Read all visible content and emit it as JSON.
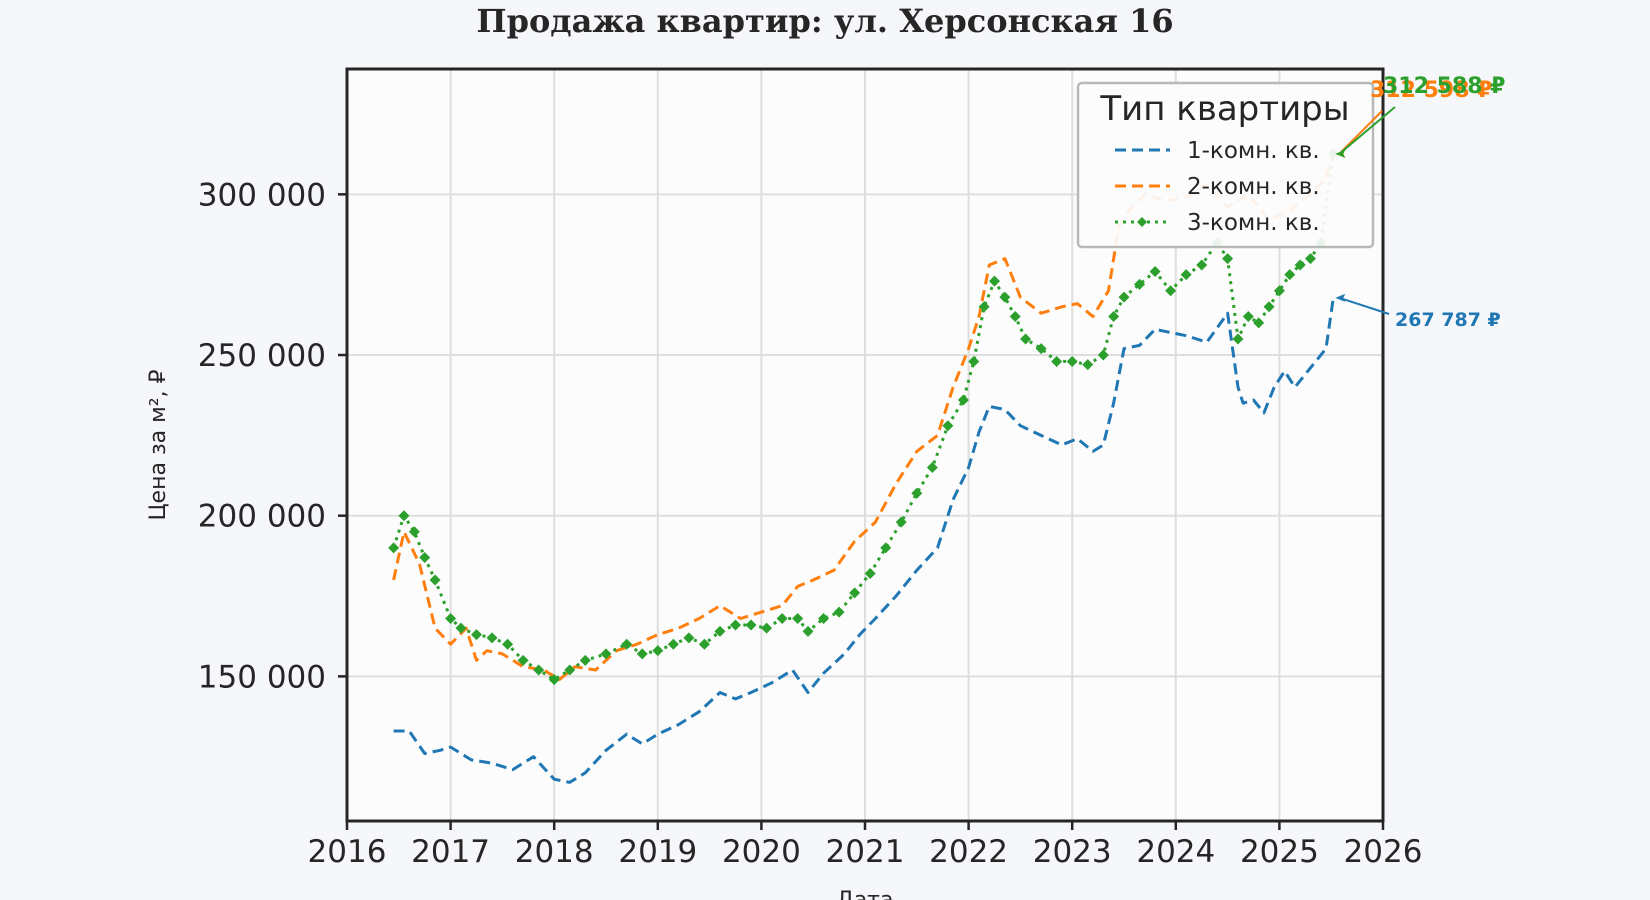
{
  "chart_data": {
    "type": "line",
    "title": "Продажа квартир: ул. Херсонская 16",
    "xlabel": "Дата",
    "ylabel": "Цена за м², ₽",
    "xlim": [
      2016,
      2026
    ],
    "ylim": [
      105000,
      339000
    ],
    "x_ticks": [
      "2016",
      "2017",
      "2018",
      "2019",
      "2020",
      "2021",
      "2022",
      "2023",
      "2024",
      "2025",
      "2026"
    ],
    "y_ticks": [
      "150 000",
      "200 000",
      "250 000",
      "300 000"
    ],
    "y_tick_values": [
      150000,
      200000,
      250000,
      300000
    ],
    "grid": true,
    "legend": {
      "title": "Тип квартиры",
      "placement": "top-right"
    },
    "series": [
      {
        "name": "1-комн. кв.",
        "color": "#1f77b4",
        "style": "dashed",
        "x": [
          2016.45,
          2016.6,
          2016.75,
          2016.9,
          2017.0,
          2017.2,
          2017.4,
          2017.6,
          2017.8,
          2018.0,
          2018.15,
          2018.3,
          2018.5,
          2018.7,
          2018.85,
          2019.0,
          2019.2,
          2019.4,
          2019.6,
          2019.75,
          2019.9,
          2020.1,
          2020.3,
          2020.45,
          2020.6,
          2020.8,
          2020.95,
          2021.1,
          2021.3,
          2021.5,
          2021.7,
          2021.85,
          2022.0,
          2022.1,
          2022.2,
          2022.35,
          2022.5,
          2022.7,
          2022.9,
          2023.05,
          2023.2,
          2023.3,
          2023.4,
          2023.5,
          2023.65,
          2023.8,
          2023.95,
          2024.1,
          2024.3,
          2024.5,
          2024.6,
          2024.65,
          2024.75,
          2024.85,
          2024.95,
          2025.05,
          2025.15,
          2025.25,
          2025.35,
          2025.45,
          2025.52
        ],
        "y": [
          133000,
          133000,
          126000,
          127000,
          128000,
          124000,
          123000,
          121000,
          125000,
          118000,
          117000,
          120000,
          127000,
          132000,
          129000,
          132000,
          135000,
          139000,
          145000,
          143000,
          145000,
          148000,
          152000,
          145000,
          151000,
          157000,
          163000,
          168000,
          175000,
          183000,
          190000,
          205000,
          215000,
          226000,
          234000,
          233000,
          228000,
          225000,
          222000,
          224000,
          220000,
          222000,
          235000,
          252000,
          253000,
          258000,
          257000,
          256000,
          254000,
          263000,
          240000,
          235000,
          236000,
          232000,
          240000,
          245000,
          240000,
          244000,
          248000,
          252000,
          267787
        ]
      },
      {
        "name": "2-комн. кв.",
        "color": "#ff7f0e",
        "style": "dashed",
        "x": [
          2016.45,
          2016.55,
          2016.7,
          2016.85,
          2017.0,
          2017.15,
          2017.25,
          2017.35,
          2017.5,
          2017.7,
          2017.9,
          2018.05,
          2018.2,
          2018.4,
          2018.6,
          2018.8,
          2019.0,
          2019.2,
          2019.4,
          2019.6,
          2019.8,
          2020.0,
          2020.2,
          2020.35,
          2020.5,
          2020.7,
          2020.9,
          2021.1,
          2021.3,
          2021.5,
          2021.7,
          2021.85,
          2022.0,
          2022.1,
          2022.2,
          2022.35,
          2022.5,
          2022.7,
          2022.9,
          2023.05,
          2023.2,
          2023.35,
          2023.45,
          2023.55,
          2023.7,
          2023.9,
          2024.1,
          2024.3,
          2024.5,
          2024.7,
          2024.9,
          2025.1,
          2025.3,
          2025.45,
          2025.52
        ],
        "y": [
          180000,
          195000,
          185000,
          165000,
          160000,
          165000,
          155000,
          158000,
          157000,
          153000,
          152000,
          149000,
          153000,
          152000,
          158000,
          160000,
          163000,
          165000,
          168000,
          172000,
          168000,
          170000,
          172000,
          178000,
          180000,
          183000,
          192000,
          198000,
          210000,
          220000,
          225000,
          240000,
          252000,
          262000,
          278000,
          280000,
          268000,
          263000,
          265000,
          266000,
          262000,
          270000,
          290000,
          295000,
          300000,
          298000,
          299000,
          303000,
          296000,
          300000,
          292000,
          295000,
          300000,
          305000,
          312598
        ]
      },
      {
        "name": "3-комн. кв.",
        "color": "#2ca02c",
        "style": "dotted-diamond",
        "x": [
          2016.45,
          2016.55,
          2016.65,
          2016.75,
          2016.85,
          2017.0,
          2017.1,
          2017.25,
          2017.4,
          2017.55,
          2017.7,
          2017.85,
          2018.0,
          2018.15,
          2018.3,
          2018.5,
          2018.7,
          2018.85,
          2019.0,
          2019.15,
          2019.3,
          2019.45,
          2019.6,
          2019.75,
          2019.9,
          2020.05,
          2020.2,
          2020.35,
          2020.45,
          2020.6,
          2020.75,
          2020.9,
          2021.05,
          2021.2,
          2021.35,
          2021.5,
          2021.65,
          2021.8,
          2021.95,
          2022.05,
          2022.15,
          2022.25,
          2022.35,
          2022.45,
          2022.55,
          2022.7,
          2022.85,
          2023.0,
          2023.15,
          2023.3,
          2023.4,
          2023.5,
          2023.65,
          2023.8,
          2023.95,
          2024.1,
          2024.25,
          2024.4,
          2024.5,
          2024.6,
          2024.7,
          2024.8,
          2024.9,
          2025.0,
          2025.1,
          2025.2,
          2025.3,
          2025.4,
          2025.52
        ],
        "y": [
          190000,
          200000,
          195000,
          187000,
          180000,
          168000,
          165000,
          163000,
          162000,
          160000,
          155000,
          152000,
          149000,
          152000,
          155000,
          157000,
          160000,
          157000,
          158000,
          160000,
          162000,
          160000,
          164000,
          166000,
          166000,
          165000,
          168000,
          168000,
          164000,
          168000,
          170000,
          176000,
          182000,
          190000,
          198000,
          207000,
          215000,
          228000,
          236000,
          248000,
          265000,
          273000,
          268000,
          262000,
          255000,
          252000,
          248000,
          248000,
          247000,
          250000,
          262000,
          268000,
          272000,
          276000,
          270000,
          275000,
          278000,
          285000,
          280000,
          255000,
          262000,
          260000,
          265000,
          270000,
          275000,
          278000,
          280000,
          285000,
          312588
        ]
      }
    ],
    "annotations": [
      {
        "text": "267 787 ₽",
        "series": "1-комн. кв.",
        "color": "#1f77b4"
      },
      {
        "text": "312 598 ₽",
        "series": "2-комн. кв.",
        "color": "#ff7f0e"
      },
      {
        "text": "312 588 ₽",
        "series": "3-комн. кв.",
        "color": "#2ca02c"
      }
    ]
  }
}
